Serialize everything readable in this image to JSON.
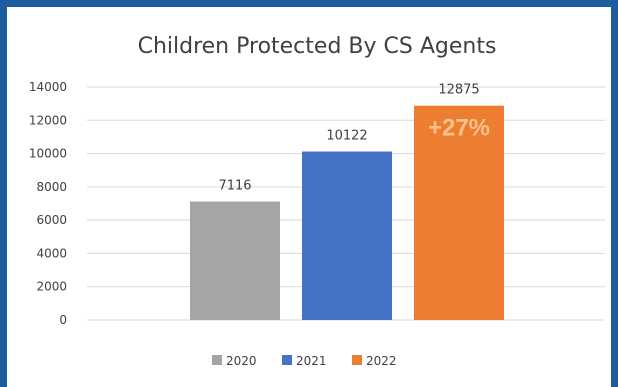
{
  "chart_data": {
    "type": "bar",
    "title": "Children Protected By CS Agents",
    "categories": [
      ""
    ],
    "series": [
      {
        "name": "2020",
        "values": [
          7116
        ],
        "color": "#a5a5a5"
      },
      {
        "name": "2021",
        "values": [
          10122
        ],
        "color": "#4472c4"
      },
      {
        "name": "2022",
        "values": [
          12875
        ],
        "color": "#ed7d31"
      }
    ],
    "ylim": [
      0,
      14000
    ],
    "yticks": [
      "14000",
      "12000",
      "10000",
      "8000",
      "6000",
      "4000",
      "2000",
      "0"
    ],
    "data_labels": [
      "7116",
      "10122",
      "12875"
    ],
    "annotation": "+27%",
    "grid": true,
    "legend_position": "bottom"
  }
}
